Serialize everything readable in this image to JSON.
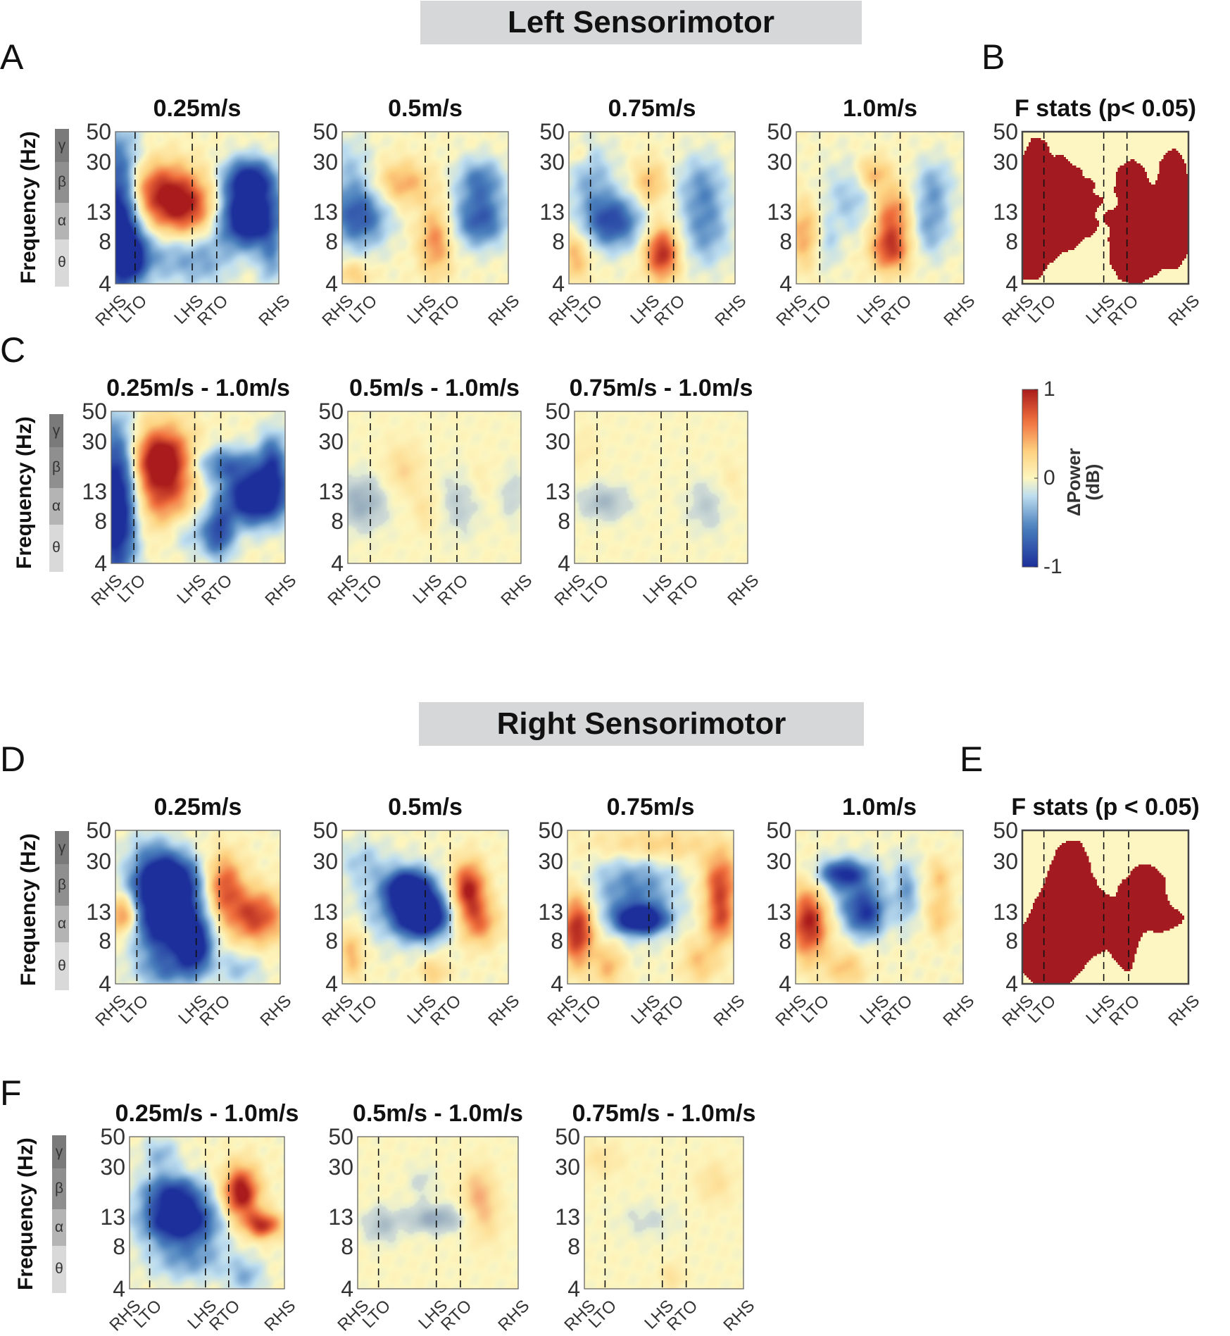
{
  "figure": {
    "sections": [
      {
        "id": "left",
        "title": "Left Sensorimotor"
      },
      {
        "id": "right",
        "title": "Right Sensorimotor"
      }
    ],
    "panel_letters": [
      "A",
      "B",
      "C",
      "D",
      "E",
      "F"
    ],
    "ylabel": "Frequency (Hz)",
    "ytick_labels": [
      "50",
      "30",
      "13",
      "8",
      "4"
    ],
    "xtick_labels": [
      "RHS",
      "LTO",
      "LHS",
      "RTO",
      "RHS"
    ],
    "bands": [
      {
        "symbol": "γ",
        "color": "#7a7a7a"
      },
      {
        "symbol": "β",
        "color": "#8f8f8f"
      },
      {
        "symbol": "α",
        "color": "#b4b4b4"
      },
      {
        "symbol": "θ",
        "color": "#d9d9d9"
      }
    ],
    "colorbar": {
      "label_line1": "ΔPower",
      "label_line2": "(dB)",
      "ticks": [
        "1",
        "0",
        "-1"
      ]
    },
    "palette": {
      "neg": "#1c2f9b",
      "mid": "#fdf6bf",
      "pos": "#a91b1c",
      "sig": "#a31a20",
      "nonsig": "#fdf6c3"
    }
  },
  "chart_data": [
    {
      "id": "A1",
      "type": "heatmap",
      "title": "0.25m/s",
      "section": "left",
      "mode": "power",
      "yticks_hz": [
        50,
        30,
        13,
        8,
        4
      ],
      "xticks": [
        "RHS",
        "LTO",
        "LHS",
        "RTO",
        "RHS"
      ],
      "event_positions_pct": [
        0,
        12,
        47,
        62,
        100
      ],
      "blobs": [
        [
          0.02,
          0.58,
          0.09,
          0.35,
          -1.3
        ],
        [
          0.11,
          0.82,
          0.06,
          0.1,
          -0.6
        ],
        [
          0.28,
          0.38,
          0.17,
          0.13,
          0.8
        ],
        [
          0.42,
          0.52,
          0.14,
          0.12,
          0.75
        ],
        [
          0.26,
          0.83,
          0.18,
          0.12,
          -0.35
        ],
        [
          0.82,
          0.32,
          0.11,
          0.1,
          -1.1
        ],
        [
          0.82,
          0.57,
          0.13,
          0.13,
          -1.4
        ],
        [
          0.55,
          0.85,
          0.12,
          0.13,
          -0.3
        ],
        [
          0.95,
          0.85,
          0.05,
          0.12,
          -0.4
        ]
      ]
    },
    {
      "id": "A2",
      "type": "heatmap",
      "title": "0.5m/s",
      "section": "left",
      "mode": "power",
      "yticks_hz": [
        50,
        30,
        13,
        8,
        4
      ],
      "xticks": [
        "RHS",
        "LTO",
        "LHS",
        "RTO",
        "RHS"
      ],
      "event_positions_pct": [
        0,
        14,
        50,
        64,
        100
      ],
      "blobs": [
        [
          0.1,
          0.56,
          0.12,
          0.14,
          -0.75
        ],
        [
          0.05,
          0.25,
          0.1,
          0.16,
          -0.25
        ],
        [
          0.36,
          0.34,
          0.12,
          0.1,
          0.45
        ],
        [
          0.56,
          0.72,
          0.07,
          0.16,
          0.55
        ],
        [
          0.83,
          0.32,
          0.1,
          0.1,
          -0.55
        ],
        [
          0.83,
          0.58,
          0.11,
          0.12,
          -0.75
        ],
        [
          0.07,
          0.94,
          0.07,
          0.06,
          0.3
        ]
      ]
    },
    {
      "id": "A3",
      "type": "heatmap",
      "title": "0.75m/s",
      "section": "left",
      "mode": "power",
      "yticks_hz": [
        50,
        30,
        13,
        8,
        4
      ],
      "xticks": [
        "RHS",
        "LTO",
        "LHS",
        "RTO",
        "RHS"
      ],
      "event_positions_pct": [
        0,
        13,
        48,
        63,
        100
      ],
      "blobs": [
        [
          0.26,
          0.59,
          0.12,
          0.12,
          -0.85
        ],
        [
          0.13,
          0.3,
          0.1,
          0.16,
          -0.35
        ],
        [
          0.49,
          0.34,
          0.07,
          0.1,
          0.4
        ],
        [
          0.56,
          0.8,
          0.07,
          0.12,
          0.95
        ],
        [
          0.04,
          0.82,
          0.06,
          0.12,
          0.4
        ],
        [
          0.8,
          0.35,
          0.1,
          0.14,
          -0.4
        ],
        [
          0.82,
          0.65,
          0.1,
          0.16,
          -0.45
        ],
        [
          0.06,
          0.16,
          0.05,
          0.06,
          0.2
        ]
      ]
    },
    {
      "id": "A4",
      "type": "heatmap",
      "title": "1.0m/s",
      "section": "left",
      "mode": "power",
      "yticks_hz": [
        50,
        30,
        13,
        8,
        4
      ],
      "xticks": [
        "RHS",
        "LTO",
        "LHS",
        "RTO",
        "RHS"
      ],
      "event_positions_pct": [
        0,
        14,
        47,
        62,
        100
      ],
      "blobs": [
        [
          0.33,
          0.44,
          0.12,
          0.16,
          -0.3
        ],
        [
          0.46,
          0.28,
          0.07,
          0.08,
          0.45
        ],
        [
          0.57,
          0.55,
          0.08,
          0.13,
          0.65
        ],
        [
          0.56,
          0.78,
          0.08,
          0.1,
          0.75
        ],
        [
          0.05,
          0.67,
          0.07,
          0.15,
          0.45
        ],
        [
          0.82,
          0.35,
          0.08,
          0.12,
          -0.35
        ],
        [
          0.8,
          0.62,
          0.08,
          0.14,
          -0.4
        ],
        [
          0.18,
          0.74,
          0.05,
          0.12,
          -0.25
        ]
      ]
    },
    {
      "id": "B",
      "type": "heatmap",
      "title": "F stats (p< 0.05)",
      "section": "left",
      "mode": "mask",
      "yticks_hz": [
        50,
        30,
        13,
        8,
        4
      ],
      "xticks": [
        "RHS",
        "LTO",
        "LHS",
        "RTO",
        "RHS"
      ],
      "event_positions_pct": [
        0,
        13,
        49,
        63,
        100
      ],
      "blobs": [
        [
          0.2,
          0.49,
          0.19,
          0.25,
          1.0
        ],
        [
          0.05,
          0.32,
          0.06,
          0.12,
          0.5
        ],
        [
          0.04,
          0.82,
          0.07,
          0.12,
          0.9
        ],
        [
          0.09,
          0.15,
          0.04,
          0.08,
          0.8
        ],
        [
          0.74,
          0.65,
          0.13,
          0.18,
          1.0
        ],
        [
          0.93,
          0.55,
          0.07,
          0.22,
          1.0
        ],
        [
          0.66,
          0.3,
          0.07,
          0.1,
          0.7
        ],
        [
          0.66,
          0.86,
          0.08,
          0.1,
          0.9
        ],
        [
          0.9,
          0.25,
          0.05,
          0.1,
          0.7
        ]
      ]
    },
    {
      "id": "C1",
      "type": "heatmap",
      "title": "0.25m/s - 1.0m/s",
      "section": "left",
      "mode": "power",
      "yticks_hz": [
        50,
        30,
        13,
        8,
        4
      ],
      "xticks": [
        "RHS",
        "LTO",
        "LHS",
        "RTO",
        "RHS"
      ],
      "event_positions_pct": [
        0,
        13,
        48,
        63,
        100
      ],
      "blobs": [
        [
          0.03,
          0.62,
          0.08,
          0.35,
          -1.35
        ],
        [
          0.3,
          0.42,
          0.12,
          0.22,
          1.0
        ],
        [
          0.28,
          0.3,
          0.1,
          0.1,
          0.5
        ],
        [
          0.83,
          0.57,
          0.13,
          0.12,
          -1.35
        ],
        [
          0.66,
          0.35,
          0.14,
          0.08,
          -0.6
        ],
        [
          0.93,
          0.33,
          0.06,
          0.14,
          -0.7
        ],
        [
          0.62,
          0.8,
          0.06,
          0.12,
          -0.7
        ],
        [
          0.46,
          0.8,
          0.12,
          0.1,
          -0.3
        ]
      ]
    },
    {
      "id": "C2",
      "type": "heatmap",
      "title": "0.5m/s - 1.0m/s",
      "section": "left",
      "mode": "diff",
      "yticks_hz": [
        50,
        30,
        13,
        8,
        4
      ],
      "xticks": [
        "RHS",
        "LTO",
        "LHS",
        "RTO",
        "RHS"
      ],
      "event_positions_pct": [
        0,
        13,
        48,
        63,
        100
      ],
      "blobs": [
        [
          0.08,
          0.6,
          0.1,
          0.12,
          -0.55
        ],
        [
          0.32,
          0.38,
          0.08,
          0.12,
          0.35
        ],
        [
          0.45,
          0.65,
          0.05,
          0.1,
          0.25
        ],
        [
          0.65,
          0.6,
          0.08,
          0.15,
          -0.3
        ],
        [
          0.95,
          0.55,
          0.05,
          0.12,
          -0.25
        ],
        [
          0.75,
          0.45,
          0.06,
          0.1,
          0.15
        ]
      ]
    },
    {
      "id": "C3",
      "type": "heatmap",
      "title": "0.75m/s - 1.0m/s",
      "section": "left",
      "mode": "diff",
      "yticks_hz": [
        50,
        30,
        13,
        8,
        4
      ],
      "xticks": [
        "RHS",
        "LTO",
        "LHS",
        "RTO",
        "RHS"
      ],
      "event_positions_pct": [
        0,
        13,
        50,
        65,
        100
      ],
      "blobs": [
        [
          0.17,
          0.6,
          0.1,
          0.08,
          -0.45
        ],
        [
          0.76,
          0.62,
          0.08,
          0.12,
          -0.3
        ],
        [
          0.9,
          0.45,
          0.06,
          0.1,
          0.15
        ],
        [
          0.05,
          0.25,
          0.06,
          0.1,
          0.15
        ]
      ]
    },
    {
      "id": "D1",
      "type": "heatmap",
      "title": "0.25m/s",
      "section": "right",
      "mode": "power",
      "yticks_hz": [
        50,
        30,
        13,
        8,
        4
      ],
      "xticks": [
        "RHS",
        "LTO",
        "LHS",
        "RTO",
        "RHS"
      ],
      "event_positions_pct": [
        0,
        13,
        49,
        63,
        100
      ],
      "blobs": [
        [
          0.3,
          0.32,
          0.13,
          0.12,
          -1.3
        ],
        [
          0.32,
          0.58,
          0.14,
          0.18,
          -1.35
        ],
        [
          0.48,
          0.76,
          0.07,
          0.12,
          -1.0
        ],
        [
          0.66,
          0.36,
          0.08,
          0.14,
          0.75
        ],
        [
          0.85,
          0.56,
          0.12,
          0.12,
          0.85
        ],
        [
          0.05,
          0.55,
          0.06,
          0.09,
          0.7
        ],
        [
          0.2,
          0.1,
          0.1,
          0.08,
          -0.2
        ],
        [
          0.3,
          0.92,
          0.12,
          0.08,
          -0.4
        ],
        [
          0.75,
          0.9,
          0.1,
          0.08,
          -0.3
        ]
      ]
    },
    {
      "id": "D2",
      "type": "heatmap",
      "title": "0.5m/s",
      "section": "right",
      "mode": "power",
      "yticks_hz": [
        50,
        30,
        13,
        8,
        4
      ],
      "xticks": [
        "RHS",
        "LTO",
        "LHS",
        "RTO",
        "RHS"
      ],
      "event_positions_pct": [
        0,
        14,
        50,
        65,
        100
      ],
      "blobs": [
        [
          0.4,
          0.38,
          0.09,
          0.08,
          -1.2
        ],
        [
          0.48,
          0.56,
          0.1,
          0.09,
          -1.4
        ],
        [
          0.38,
          0.48,
          0.18,
          0.16,
          -0.5
        ],
        [
          0.76,
          0.38,
          0.07,
          0.12,
          1.0
        ],
        [
          0.82,
          0.6,
          0.08,
          0.1,
          0.6
        ],
        [
          0.12,
          0.2,
          0.1,
          0.1,
          -0.25
        ],
        [
          0.06,
          0.8,
          0.05,
          0.12,
          0.4
        ],
        [
          0.55,
          0.92,
          0.06,
          0.06,
          0.3
        ]
      ]
    },
    {
      "id": "D3",
      "type": "heatmap",
      "title": "0.75m/s",
      "section": "right",
      "mode": "power",
      "yticks_hz": [
        50,
        30,
        13,
        8,
        4
      ],
      "xticks": [
        "RHS",
        "LTO",
        "LHS",
        "RTO",
        "RHS"
      ],
      "event_positions_pct": [
        0,
        13,
        49,
        63,
        100
      ],
      "blobs": [
        [
          0.44,
          0.58,
          0.1,
          0.06,
          -1.3
        ],
        [
          0.4,
          0.4,
          0.18,
          0.18,
          -0.55
        ],
        [
          0.06,
          0.65,
          0.07,
          0.16,
          1.0
        ],
        [
          0.92,
          0.35,
          0.07,
          0.14,
          0.8
        ],
        [
          0.92,
          0.6,
          0.06,
          0.1,
          0.6
        ],
        [
          0.5,
          0.1,
          0.25,
          0.08,
          0.35
        ],
        [
          0.25,
          0.88,
          0.06,
          0.1,
          0.4
        ],
        [
          0.8,
          0.85,
          0.08,
          0.1,
          0.35
        ]
      ]
    },
    {
      "id": "D4",
      "type": "heatmap",
      "title": "1.0m/s",
      "section": "right",
      "mode": "power",
      "yticks_hz": [
        50,
        30,
        13,
        8,
        4
      ],
      "xticks": [
        "RHS",
        "LTO",
        "LHS",
        "RTO",
        "RHS"
      ],
      "event_positions_pct": [
        0,
        13,
        49,
        63,
        100
      ],
      "blobs": [
        [
          0.28,
          0.28,
          0.1,
          0.06,
          -0.8
        ],
        [
          0.42,
          0.55,
          0.08,
          0.1,
          -0.75
        ],
        [
          0.35,
          0.4,
          0.14,
          0.14,
          -0.4
        ],
        [
          0.08,
          0.6,
          0.08,
          0.16,
          1.0
        ],
        [
          0.66,
          0.4,
          0.05,
          0.15,
          -0.4
        ],
        [
          0.86,
          0.55,
          0.05,
          0.1,
          0.35
        ],
        [
          0.86,
          0.3,
          0.05,
          0.08,
          0.3
        ],
        [
          0.3,
          0.9,
          0.08,
          0.08,
          0.35
        ]
      ]
    },
    {
      "id": "E",
      "type": "heatmap",
      "title": "F stats (p < 0.05)",
      "section": "right",
      "mode": "mask",
      "yticks_hz": [
        50,
        30,
        13,
        8,
        4
      ],
      "xticks": [
        "RHS",
        "LTO",
        "LHS",
        "RTO",
        "RHS"
      ],
      "event_positions_pct": [
        0,
        13,
        49,
        64,
        100
      ],
      "blobs": [
        [
          0.28,
          0.4,
          0.1,
          0.22,
          1.0
        ],
        [
          0.18,
          0.7,
          0.14,
          0.18,
          1.0
        ],
        [
          0.42,
          0.6,
          0.1,
          0.14,
          0.9
        ],
        [
          0.62,
          0.72,
          0.06,
          0.16,
          0.9
        ],
        [
          0.74,
          0.4,
          0.1,
          0.14,
          1.0
        ],
        [
          0.85,
          0.58,
          0.1,
          0.06,
          0.8
        ],
        [
          0.3,
          0.2,
          0.05,
          0.08,
          0.7
        ],
        [
          0.16,
          0.9,
          0.1,
          0.08,
          0.9
        ]
      ]
    },
    {
      "id": "F1",
      "type": "heatmap",
      "title": "0.25m/s - 1.0m/s",
      "section": "right",
      "mode": "power",
      "yticks_hz": [
        50,
        30,
        13,
        8,
        4
      ],
      "xticks": [
        "RHS",
        "LTO",
        "LHS",
        "RTO",
        "RHS"
      ],
      "event_positions_pct": [
        0,
        13,
        49,
        64,
        100
      ],
      "blobs": [
        [
          0.32,
          0.55,
          0.16,
          0.1,
          -1.35
        ],
        [
          0.28,
          0.36,
          0.14,
          0.08,
          -0.8
        ],
        [
          0.72,
          0.37,
          0.08,
          0.12,
          1.1
        ],
        [
          0.86,
          0.58,
          0.08,
          0.06,
          0.9
        ],
        [
          0.38,
          0.8,
          0.18,
          0.1,
          -0.45
        ],
        [
          0.2,
          0.12,
          0.08,
          0.08,
          -0.35
        ],
        [
          0.75,
          0.92,
          0.08,
          0.08,
          -0.35
        ]
      ]
    },
    {
      "id": "F2",
      "type": "heatmap",
      "title": "0.5m/s - 1.0m/s",
      "section": "right",
      "mode": "diff",
      "yticks_hz": [
        50,
        30,
        13,
        8,
        4
      ],
      "xticks": [
        "RHS",
        "LTO",
        "LHS",
        "RTO",
        "RHS"
      ],
      "event_positions_pct": [
        0,
        13,
        49,
        64,
        100
      ],
      "blobs": [
        [
          0.48,
          0.54,
          0.12,
          0.06,
          -0.6
        ],
        [
          0.15,
          0.58,
          0.08,
          0.08,
          -0.4
        ],
        [
          0.75,
          0.36,
          0.07,
          0.12,
          0.5
        ],
        [
          0.8,
          0.55,
          0.07,
          0.12,
          0.3
        ],
        [
          0.4,
          0.3,
          0.06,
          0.08,
          -0.2
        ]
      ]
    },
    {
      "id": "F3",
      "type": "heatmap",
      "title": "0.75m/s - 1.0m/s",
      "section": "right",
      "mode": "diff",
      "yticks_hz": [
        50,
        30,
        13,
        8,
        4
      ],
      "xticks": [
        "RHS",
        "LTO",
        "LHS",
        "RTO",
        "RHS"
      ],
      "event_positions_pct": [
        0,
        13,
        49,
        64,
        100
      ],
      "blobs": [
        [
          0.82,
          0.3,
          0.08,
          0.1,
          0.3
        ],
        [
          0.4,
          0.55,
          0.12,
          0.08,
          -0.2
        ],
        [
          0.55,
          0.92,
          0.05,
          0.06,
          0.3
        ],
        [
          0.1,
          0.15,
          0.1,
          0.08,
          0.25
        ]
      ]
    }
  ]
}
